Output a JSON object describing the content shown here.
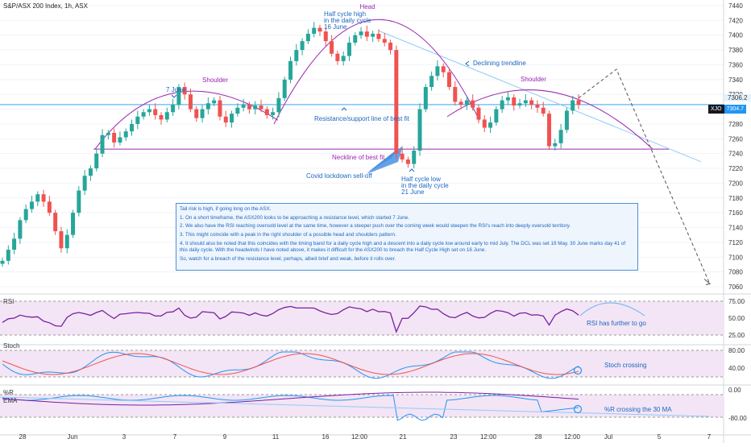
{
  "header": {
    "title": "S&P/ASX 200 Index, 1h, ASX"
  },
  "chart_data": {
    "type": "candlestick",
    "price_axis": {
      "min": 7060,
      "max": 7440,
      "ticks": [
        7440,
        7420,
        7400,
        7380,
        7360,
        7340,
        7320,
        7300,
        7280,
        7260,
        7240,
        7220,
        7200,
        7180,
        7160,
        7140,
        7120,
        7100,
        7080,
        7060
      ]
    },
    "time_axis": {
      "labels": [
        "28",
        "Jun",
        "3",
        "7",
        "9",
        "11",
        "16",
        "12:00",
        "21",
        "23",
        "12:00",
        "28",
        "12:00",
        "Jul",
        "5",
        "7"
      ]
    },
    "price_series": [
      7095,
      7110,
      7125,
      7150,
      7165,
      7175,
      7185,
      7175,
      7160,
      7135,
      7112,
      7130,
      7160,
      7190,
      7210,
      7220,
      7240,
      7265,
      7268,
      7255,
      7262,
      7270,
      7280,
      7290,
      7296,
      7300,
      7292,
      7286,
      7296,
      7306,
      7330,
      7320,
      7300,
      7288,
      7300,
      7308,
      7312,
      7290,
      7282,
      7294,
      7302,
      7306,
      7300,
      7305,
      7300,
      7292,
      7296,
      7315,
      7340,
      7365,
      7380,
      7392,
      7402,
      7410,
      7405,
      7392,
      7375,
      7365,
      7372,
      7390,
      7400,
      7405,
      7398,
      7402,
      7395,
      7390,
      7380,
      7240,
      7232,
      7226,
      7244,
      7300,
      7330,
      7345,
      7358,
      7350,
      7330,
      7310,
      7306,
      7312,
      7302,
      7286,
      7275,
      7282,
      7300,
      7312,
      7316,
      7305,
      7308,
      7312,
      7306,
      7302,
      7294,
      7250,
      7254,
      7272,
      7298,
      7312,
      7306
    ],
    "current_price": {
      "value": "7304.7",
      "symbol": "XJO",
      "resistance_label": "7306.2"
    },
    "resistance_level": 7306.2,
    "neckline_level": 7246,
    "annotations": {
      "head": "Head",
      "shoulder_left": "Shoulder",
      "shoulder_right": "Shoulder",
      "half_cycle_high": [
        "Half cycle high",
        "in the daily cycle",
        "16 June"
      ],
      "june7": "7 June",
      "declining_trendline": "Declining trendline",
      "resistance_line": "Resistance/support line of best fit",
      "neckline": "Neckline of best fit",
      "covid": "Covid lockdown sell-off",
      "half_cycle_low": [
        "Half cycle low",
        "in the daily cycle",
        "21 June"
      ]
    },
    "indicators": {
      "rsi": {
        "name": "RSI",
        "ticks": [
          "75.00",
          "50.00",
          "25.00"
        ],
        "note": "RSI has further to go"
      },
      "stoch": {
        "name": "Stoch",
        "ticks": [
          "80.00",
          "40.00"
        ],
        "note": "Stoch crossing"
      },
      "williams": {
        "name": "%R",
        "name2": "EMA",
        "ticks": [
          "0.00",
          "-80.00"
        ],
        "note": "%R crossing the 30 MA"
      }
    }
  },
  "note_box": {
    "lines": [
      "Tail risk is high, if going long on the ASX.",
      "1. On a short timeframe, the ASX200 looks to be approaching a resistance level, which started 7 June.",
      "2. We also have the RSI reaching oversold level at the same time, however a steeper push over the coming week would steepen the RSI's reach into deeply oversold territory.",
      "3. This might coincide with a peak in the right shoulder of a possible head and shoulders pattern.",
      "4. It should also be noted that this coincides with the timing band for a daily cycle high and a descent into a daily cycle low around early to mid July. The DCL was set 19 May. 30 June marks day 41 of this daily cycle. With the headwinds I have noted above, it makes it difficult for the ASX200 to breach the Half Cycle High set on 16 June.",
      "So, watch for a breach of the resistance level, perhaps, albeit brief and weak, before it rolls over."
    ]
  },
  "colors": {
    "up": "#26a69a",
    "down": "#ef5350",
    "accent": "#2196f3",
    "arc": "#9c27b0",
    "panel": "#f3e5f5"
  }
}
